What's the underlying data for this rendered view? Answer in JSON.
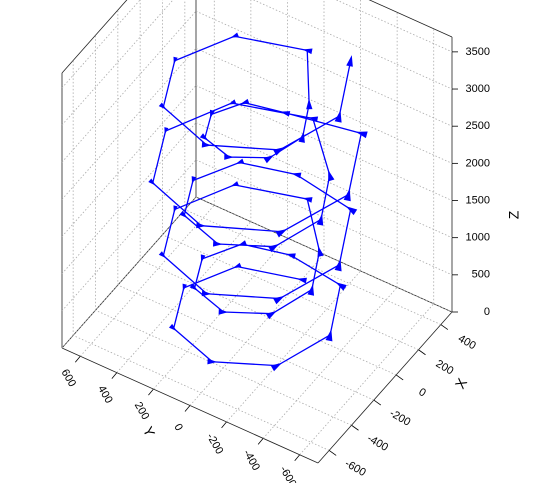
{
  "chart_data": {
    "type": "line3d",
    "xlabel": "X",
    "ylabel": "Y",
    "zlabel": "Z",
    "xlim": [
      -700,
      500
    ],
    "xticks": [
      -600,
      -400,
      -200,
      0,
      200,
      400
    ],
    "ylim": [
      -700,
      700
    ],
    "yticks": [
      -600,
      -400,
      -200,
      0,
      200,
      400,
      600
    ],
    "zlim": [
      0,
      3700
    ],
    "zticks": [
      0,
      500,
      1000,
      1500,
      2000,
      2500,
      3000,
      3500
    ],
    "grid": true,
    "series": [
      {
        "color": "#0000ff",
        "x": [
          300,
          183,
          -100,
          -383,
          -500,
          -383,
          -100,
          183,
          200,
          112,
          -100,
          -312,
          -400,
          -312,
          -100,
          112,
          350,
          218,
          -100,
          -418,
          -550,
          -418,
          -100,
          218,
          250,
          147,
          -100,
          -347,
          -450,
          -347,
          -100,
          147,
          400,
          254,
          -100,
          -454,
          -600,
          -454,
          -100,
          254,
          150,
          77,
          -100,
          -277,
          -350,
          -277,
          -100,
          77,
          350,
          218,
          -100,
          -418,
          -550,
          -418,
          -100,
          218
        ],
        "y": [
          0,
          283,
          400,
          283,
          0,
          -283,
          -400,
          -283,
          0,
          212,
          300,
          212,
          0,
          -212,
          -300,
          -212,
          0,
          318,
          450,
          318,
          0,
          -318,
          -450,
          -318,
          0,
          247,
          350,
          247,
          0,
          -247,
          -350,
          -247,
          0,
          354,
          500,
          354,
          0,
          -354,
          -500,
          -354,
          0,
          177,
          250,
          177,
          0,
          -177,
          -250,
          -177,
          0,
          318,
          450,
          318,
          0,
          -318,
          -450,
          -318
        ],
        "z": [
          0,
          62.5,
          125,
          187.5,
          250,
          312.5,
          375,
          437.5,
          500,
          562.5,
          625,
          687.5,
          750,
          812.5,
          875,
          937.5,
          1000,
          1062.5,
          1125,
          1187.5,
          1250,
          1312.5,
          1375,
          1437.5,
          1500,
          1562.5,
          1625,
          1687.5,
          1750,
          1812.5,
          1875,
          1937.5,
          2000,
          2062.5,
          2125,
          2187.5,
          2250,
          2312.5,
          2375,
          2437.5,
          2500,
          2562.5,
          2625,
          2687.5,
          2750,
          2812.5,
          2875,
          2937.5,
          3000,
          3062.5,
          3125,
          3187.5,
          3250,
          3312.5,
          3375,
          3437.5
        ]
      }
    ]
  }
}
